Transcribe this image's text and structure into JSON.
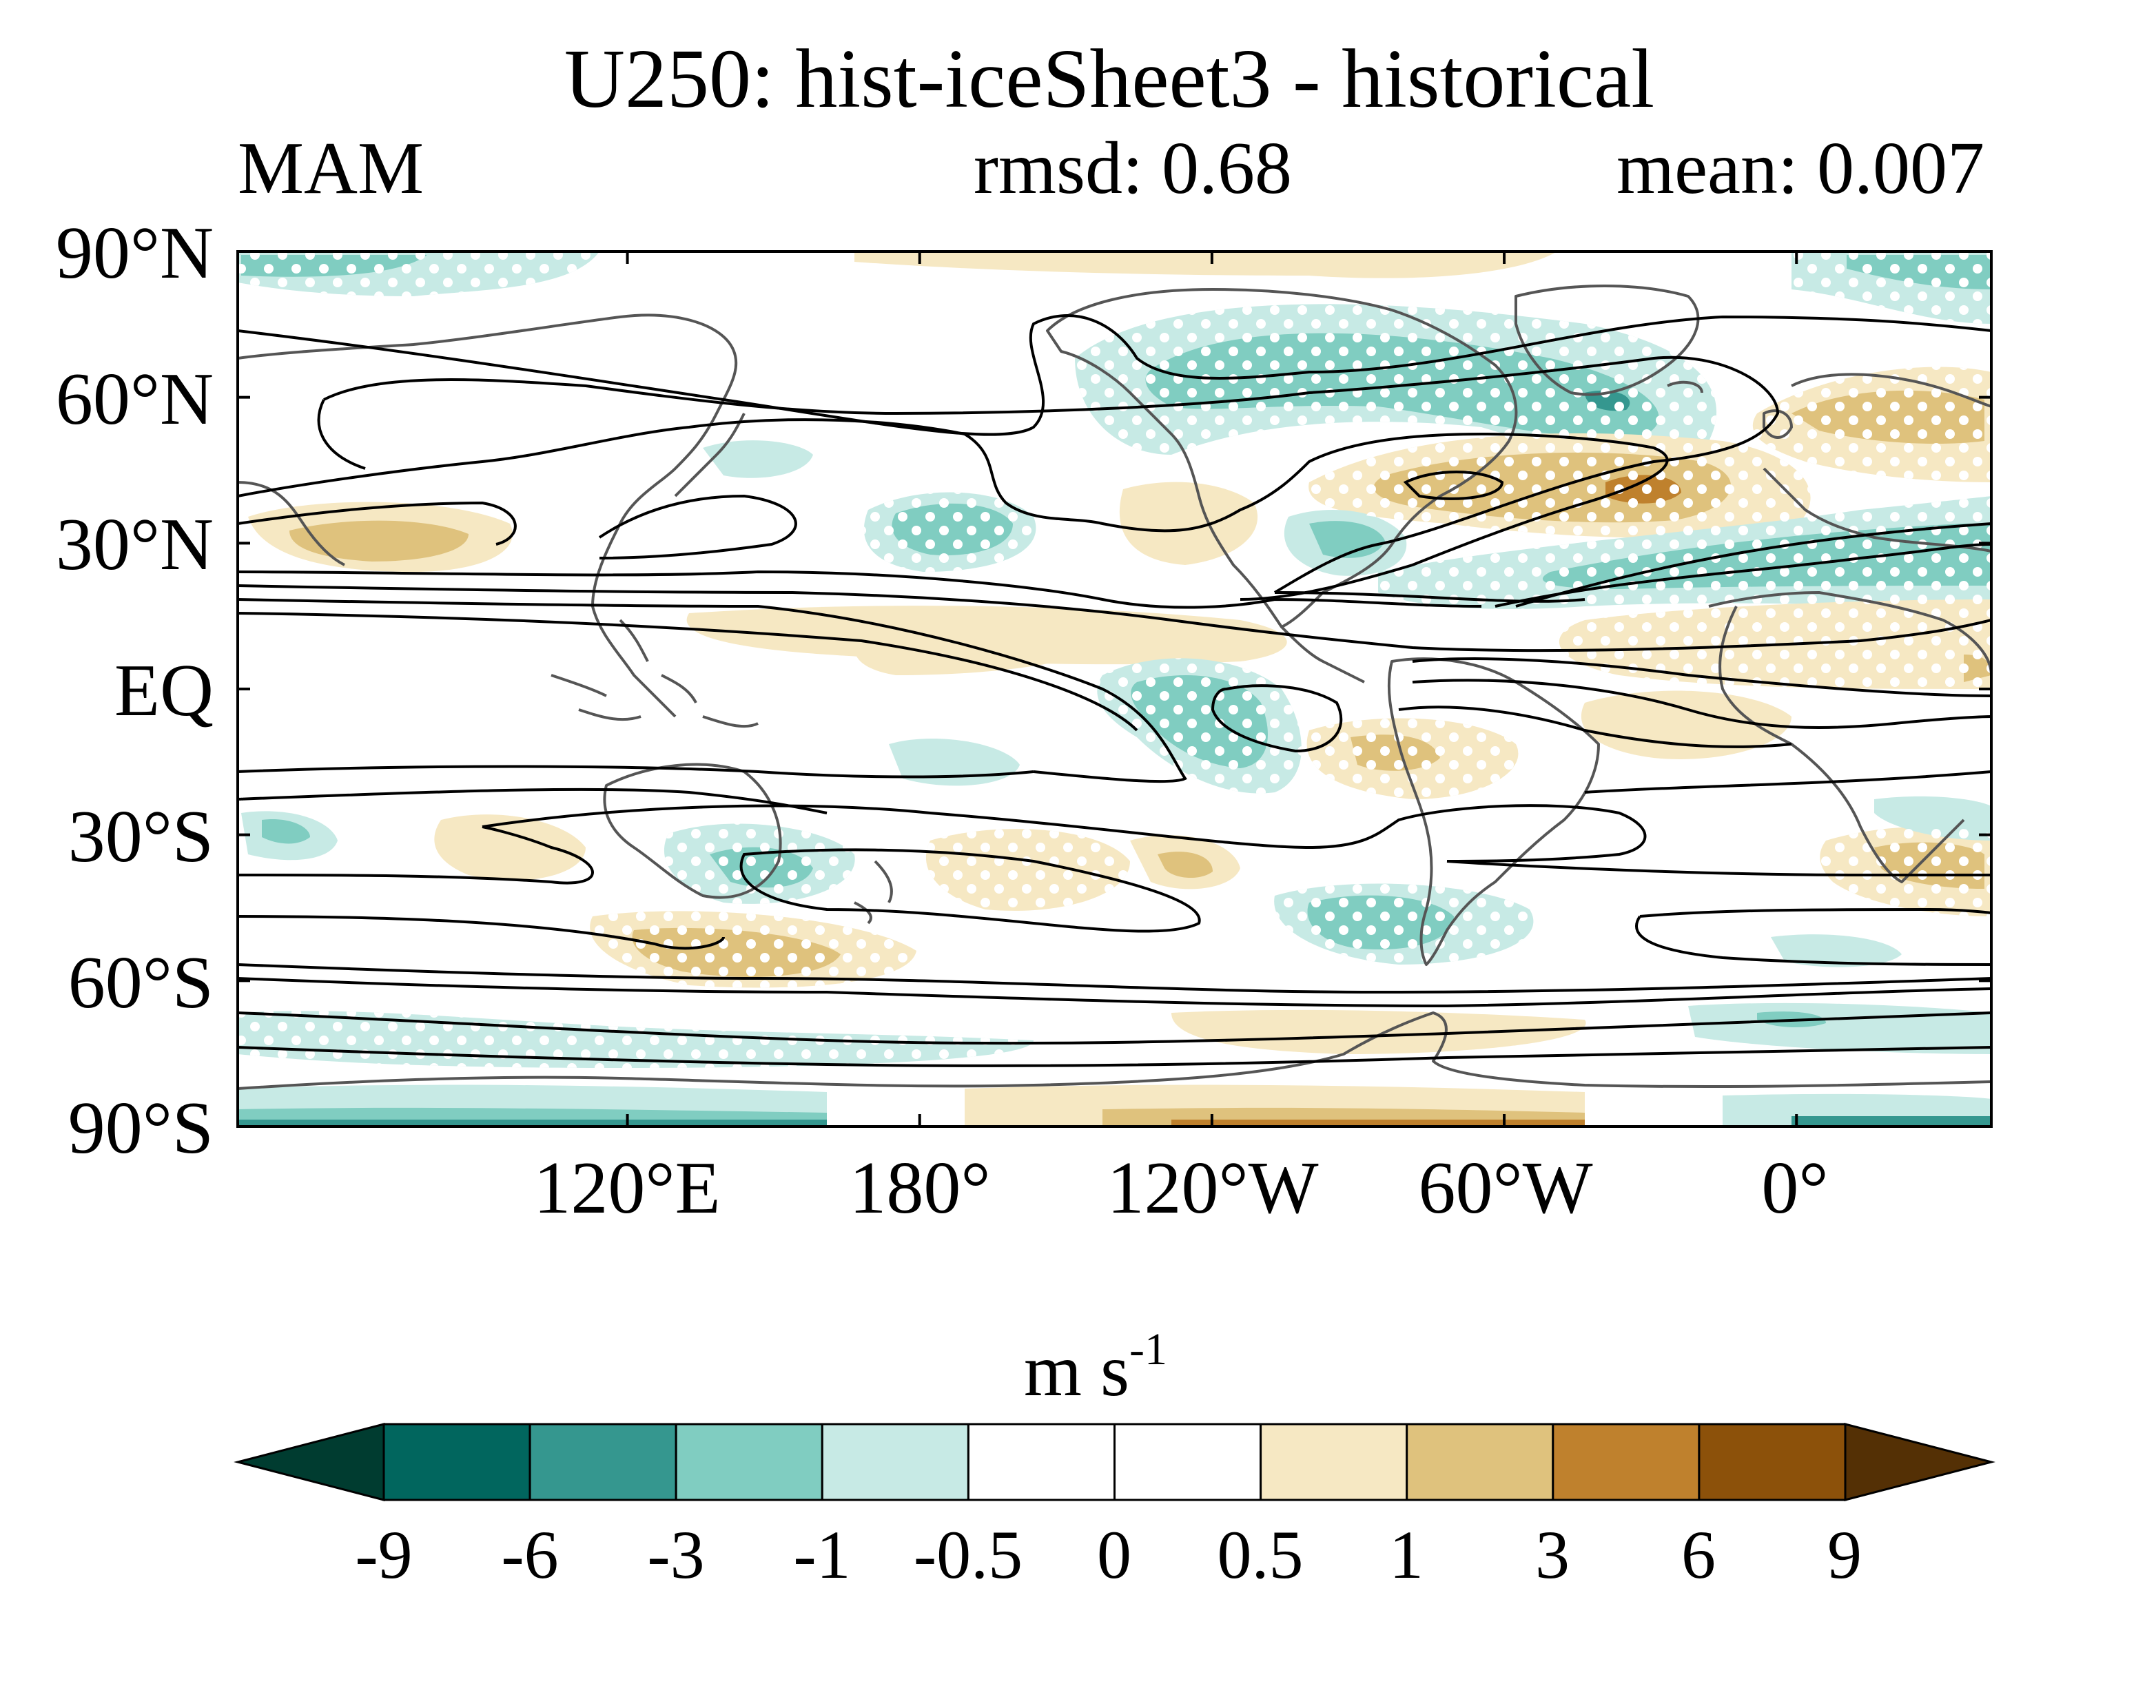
{
  "title": "U250: hist-iceSheet3 - historical",
  "season": "MAM",
  "rmsd_label": "rmsd: 0.68",
  "mean_label": "mean: 0.007",
  "map": {
    "lat_labels": [
      "90°N",
      "60°N",
      "30°N",
      "EQ",
      "30°S",
      "60°S",
      "90°S"
    ],
    "lon_labels": [
      "120°E",
      "180°",
      "120°W",
      "60°W",
      "0°"
    ],
    "lon_range_deg_east": [
      40,
      400
    ],
    "lat_range": [
      -90,
      90
    ]
  },
  "colorbar": {
    "unit_base": "m s",
    "unit_exp": "-1",
    "tick_labels": [
      "-9",
      "-6",
      "-3",
      "-1",
      "-0.5",
      "0",
      "0.5",
      "1",
      "3",
      "6",
      "9"
    ],
    "colors": [
      "#003c30",
      "#01665e",
      "#35978f",
      "#80cdc1",
      "#c7eae5",
      "#ffffff",
      "#ffffff",
      "#f6e8c3",
      "#dfc27d",
      "#bf812d",
      "#8c510a",
      "#543005"
    ]
  }
}
